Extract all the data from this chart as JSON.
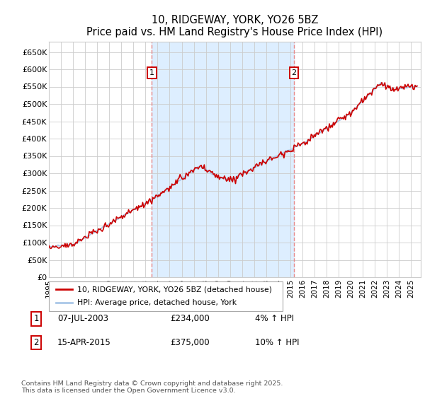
{
  "title": "10, RIDGEWAY, YORK, YO26 5BZ",
  "subtitle": "Price paid vs. HM Land Registry's House Price Index (HPI)",
  "ylabel_ticks": [
    "£0",
    "£50K",
    "£100K",
    "£150K",
    "£200K",
    "£250K",
    "£300K",
    "£350K",
    "£400K",
    "£450K",
    "£500K",
    "£550K",
    "£600K",
    "£650K"
  ],
  "ytick_values": [
    0,
    50000,
    100000,
    150000,
    200000,
    250000,
    300000,
    350000,
    400000,
    450000,
    500000,
    550000,
    600000,
    650000
  ],
  "ylim": [
    0,
    680000
  ],
  "xlim_start": 1995.0,
  "xlim_end": 2025.8,
  "marker1_date": 2003.52,
  "marker1_label": "1",
  "marker1_price": 234000,
  "marker2_date": 2015.29,
  "marker2_label": "2",
  "marker2_price": 375000,
  "hpi_line_color": "#aac8e8",
  "price_line_color": "#cc0000",
  "marker_box_color": "#cc0000",
  "vline_color": "#e88888",
  "bg_shaded_color": "#ddeeff",
  "grid_color": "#cccccc",
  "legend_label1": "10, RIDGEWAY, YORK, YO26 5BZ (detached house)",
  "legend_label2": "HPI: Average price, detached house, York",
  "footer": "Contains HM Land Registry data © Crown copyright and database right 2025.\nThis data is licensed under the Open Government Licence v3.0.",
  "table_row1": [
    "1",
    "07-JUL-2003",
    "£234,000",
    "4% ↑ HPI"
  ],
  "table_row2": [
    "2",
    "15-APR-2015",
    "£375,000",
    "10% ↑ HPI"
  ]
}
